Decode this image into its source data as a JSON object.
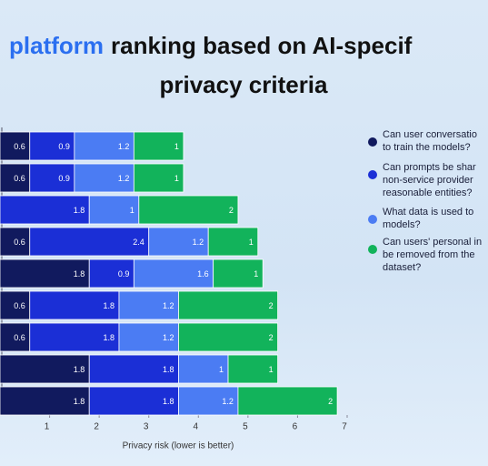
{
  "chart_data": {
    "type": "stacked-barh",
    "title_highlight": "platform",
    "title": "ranking based on AI-specif",
    "title_line2": "privacy criteria",
    "x_label": "Privacy risk (lower is better)",
    "categories": [
      null,
      null,
      null,
      null,
      null,
      null,
      null,
      null,
      null
    ],
    "series": [
      {
        "name": "Can user conversatio\nto train the models?",
        "color": "#111a5e",
        "values": [
          0.6,
          0.6,
          null,
          0.6,
          1.8,
          0.6,
          0.6,
          1.8,
          1.8
        ]
      },
      {
        "name": "Can prompts be shar\nnon-service provider\nreasonable entities?",
        "color": "#1b2fd6",
        "values": [
          0.9,
          0.9,
          1.8,
          2.4,
          0.9,
          1.8,
          1.8,
          1.8,
          1.8
        ]
      },
      {
        "name": "What data is used to\nmodels?",
        "color": "#4b7cf3",
        "values": [
          1.2,
          1.2,
          1,
          1.2,
          1.6,
          1.2,
          1.2,
          1,
          1.2
        ]
      },
      {
        "name": "Can users' personal in\nbe removed from the\ndataset?",
        "color": "#12b35b",
        "values": [
          1,
          1,
          2,
          1,
          1,
          2,
          2,
          1,
          2
        ]
      }
    ],
    "xlim": [
      0,
      7
    ],
    "xticks": [
      1,
      2,
      3,
      4,
      5,
      6,
      7
    ]
  }
}
